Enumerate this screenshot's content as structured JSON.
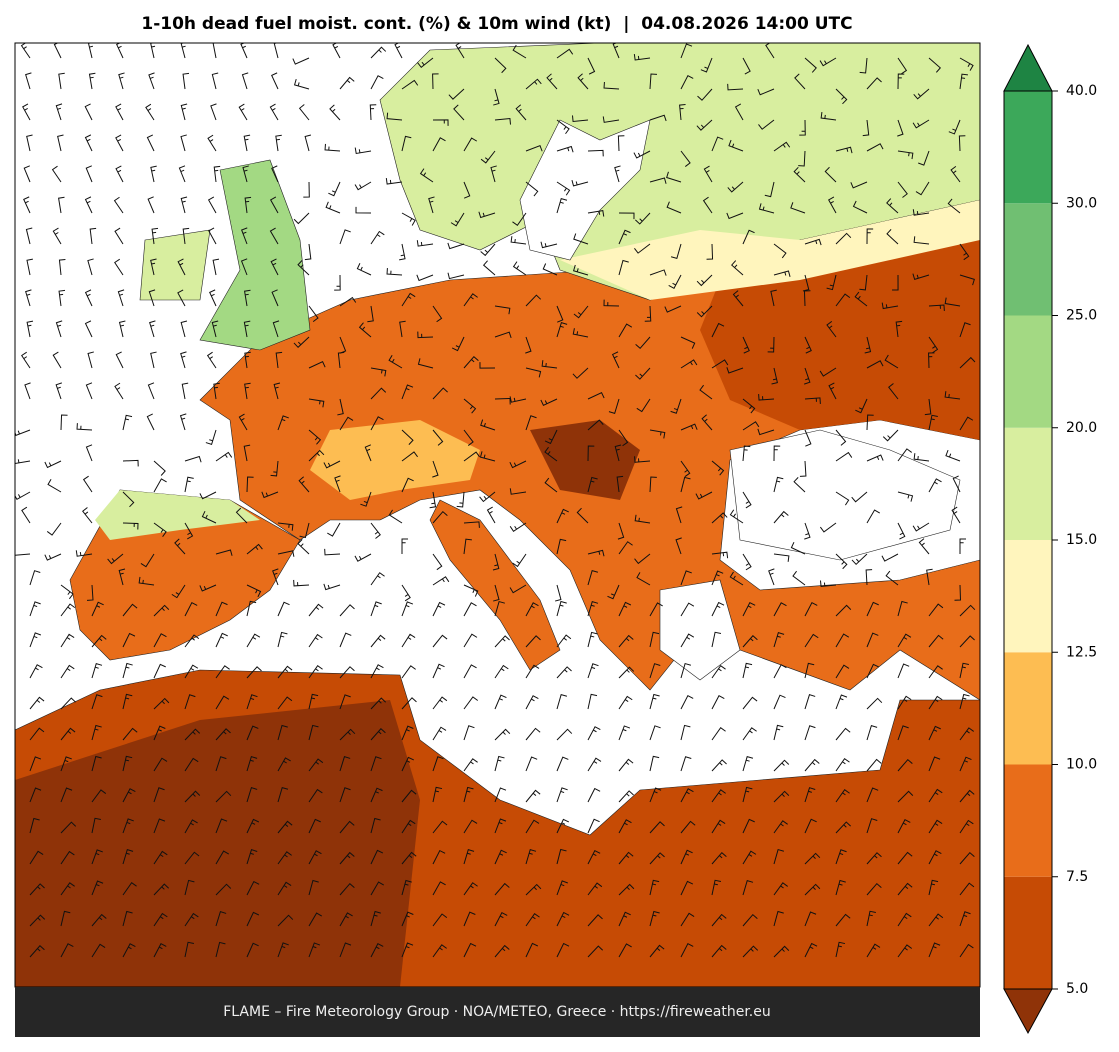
{
  "title": "1-10h dead fuel moist. cont. (%) & 10m wind (kt)  |  04.08.2026 14:00 UTC",
  "footer": "FLAME – Fire Meteorology Group · NOA/METEO, Greece · https://fireweather.eu",
  "colorbar": {
    "ticks": [
      {
        "value": 5,
        "label": "5.0"
      },
      {
        "value": 7.5,
        "label": "7.5"
      },
      {
        "value": 10,
        "label": "10.0"
      },
      {
        "value": 12.5,
        "label": "12.5"
      },
      {
        "value": 15,
        "label": "15.0"
      },
      {
        "value": 20,
        "label": "20.0"
      },
      {
        "value": 25,
        "label": "25.0"
      },
      {
        "value": 30,
        "label": "30.0"
      },
      {
        "value": 40,
        "label": "40.0"
      }
    ],
    "colors": [
      "#c64b05",
      "#e86d1a",
      "#fdbd52",
      "#fff5bd",
      "#d8ee9f",
      "#a3d983",
      "#70bf72",
      "#3ca85a"
    ],
    "under_color": "#8f3308",
    "over_color": "#1e8443"
  }
}
